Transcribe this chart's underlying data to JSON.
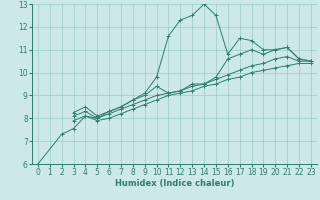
{
  "xlabel": "Humidex (Indice chaleur)",
  "bg_color": "#cce8e8",
  "grid_color": "#99cccc",
  "line_color": "#2e7d6e",
  "xlim": [
    -0.5,
    23.5
  ],
  "ylim": [
    6,
    13
  ],
  "xticks": [
    0,
    1,
    2,
    3,
    4,
    5,
    6,
    7,
    8,
    9,
    10,
    11,
    12,
    13,
    14,
    15,
    16,
    17,
    18,
    19,
    20,
    21,
    22,
    23
  ],
  "yticks": [
    6,
    7,
    8,
    9,
    10,
    11,
    12,
    13
  ],
  "series": [
    {
      "x": [
        0,
        2,
        3,
        4,
        5,
        6,
        7,
        8,
        9,
        10,
        11,
        12,
        13,
        14,
        15,
        16,
        17,
        18,
        19,
        20,
        21,
        22,
        23
      ],
      "y": [
        6.0,
        7.3,
        7.55,
        8.1,
        8.0,
        8.3,
        8.5,
        8.8,
        9.1,
        9.8,
        11.6,
        12.3,
        12.5,
        13.0,
        12.5,
        10.8,
        11.5,
        11.4,
        11.0,
        11.0,
        11.1,
        10.6,
        10.5
      ]
    },
    {
      "x": [
        3,
        4,
        5,
        6,
        7,
        8,
        9,
        10,
        11,
        12,
        13,
        14,
        15,
        16,
        17,
        18,
        19,
        20,
        21,
        22,
        23
      ],
      "y": [
        8.25,
        8.5,
        8.1,
        8.3,
        8.5,
        8.8,
        9.0,
        9.4,
        9.1,
        9.2,
        9.5,
        9.5,
        9.8,
        10.6,
        10.8,
        11.0,
        10.8,
        11.0,
        11.1,
        10.6,
        10.5
      ]
    },
    {
      "x": [
        3,
        4,
        5,
        6,
        7,
        8,
        9,
        10,
        11,
        12,
        13,
        14,
        15,
        16,
        17,
        18,
        19,
        20,
        21,
        22,
        23
      ],
      "y": [
        8.1,
        8.3,
        8.0,
        8.2,
        8.4,
        8.6,
        8.8,
        9.0,
        9.1,
        9.2,
        9.4,
        9.5,
        9.7,
        9.9,
        10.1,
        10.3,
        10.4,
        10.6,
        10.7,
        10.5,
        10.5
      ]
    },
    {
      "x": [
        3,
        4,
        5,
        6,
        7,
        8,
        9,
        10,
        11,
        12,
        13,
        14,
        15,
        16,
        17,
        18,
        19,
        20,
        21,
        22,
        23
      ],
      "y": [
        7.9,
        8.1,
        7.9,
        8.0,
        8.2,
        8.4,
        8.6,
        8.8,
        9.0,
        9.1,
        9.2,
        9.4,
        9.5,
        9.7,
        9.8,
        10.0,
        10.1,
        10.2,
        10.3,
        10.4,
        10.4
      ]
    }
  ]
}
